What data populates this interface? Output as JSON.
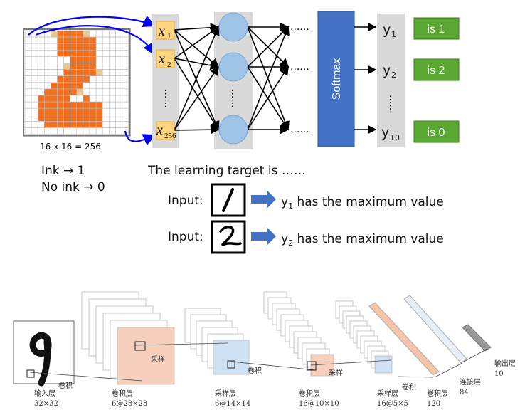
{
  "input_grid": {
    "caption": "16 x 16 = 256",
    "rows": [
      "....LOOOOL......",
      ".....OOOOOO.....",
      ".....OOOOOO.....",
      ".....OOOOOO.....",
      ".......OOOO.....",
      "......LOOOO.....",
      "......OOOOOL....",
      ".....OOOOO......",
      "....OOOOO.......",
      "...OOOOOL.......",
      "..OOOOO..O......",
      "..OOOOOOOOOO....",
      "..OOOOOOOOOO....",
      "..OOOOOOOOOO....",
      "...OOOOOOOOO....",
      "................"
    ],
    "colors": {
      "ink": "#f07020",
      "light": "#e8c890",
      "grid": "#bbbbbb"
    }
  },
  "ink_rules": [
    "Ink → 1",
    "No ink → 0"
  ],
  "inputs": [
    {
      "base": "x",
      "sub": "1"
    },
    {
      "base": "x",
      "sub": "2"
    },
    {
      "base": "x",
      "sub": "256"
    }
  ],
  "ellipsis_dots": "......",
  "softmax_label": "Softmax",
  "outputs": [
    {
      "base": "y",
      "sub": "1"
    },
    {
      "base": "y",
      "sub": "2"
    },
    {
      "base": "y",
      "sub": "10"
    }
  ],
  "output_labels": [
    "is 1",
    "is 2",
    "is 0"
  ],
  "colors": {
    "softmax": "#4472c4",
    "output_badge": "#5aa832",
    "neuron": "#9dc3e6",
    "input_box": "#ffd580",
    "arrow": "#0000ff"
  },
  "learning_target": {
    "title": "The learning target is ……",
    "examples": [
      {
        "label": "Input:",
        "digit": "1",
        "result_base": "y",
        "result_sub": "1",
        "result_text": " has the maximum value"
      },
      {
        "label": "Input:",
        "digit": "2",
        "result_base": "y",
        "result_sub": "2",
        "result_text": " has the maximum value"
      }
    ]
  },
  "cnn": {
    "input_digit": "9",
    "layers": [
      {
        "name": "输入层",
        "size": "32×32"
      },
      {
        "name": "卷积层",
        "size": "6@28×28"
      },
      {
        "name": "采样层",
        "size": "6@14×14"
      },
      {
        "name": "卷积层",
        "size": "16@10×10"
      },
      {
        "name": "采样层",
        "size": "16@5×5"
      },
      {
        "name": "卷积层",
        "size": "120"
      },
      {
        "name": "连接层",
        "size": "84"
      },
      {
        "name": "输出层",
        "size": "10"
      }
    ],
    "ops": [
      "卷积",
      "采样",
      "卷积",
      "采样",
      "卷积"
    ]
  }
}
